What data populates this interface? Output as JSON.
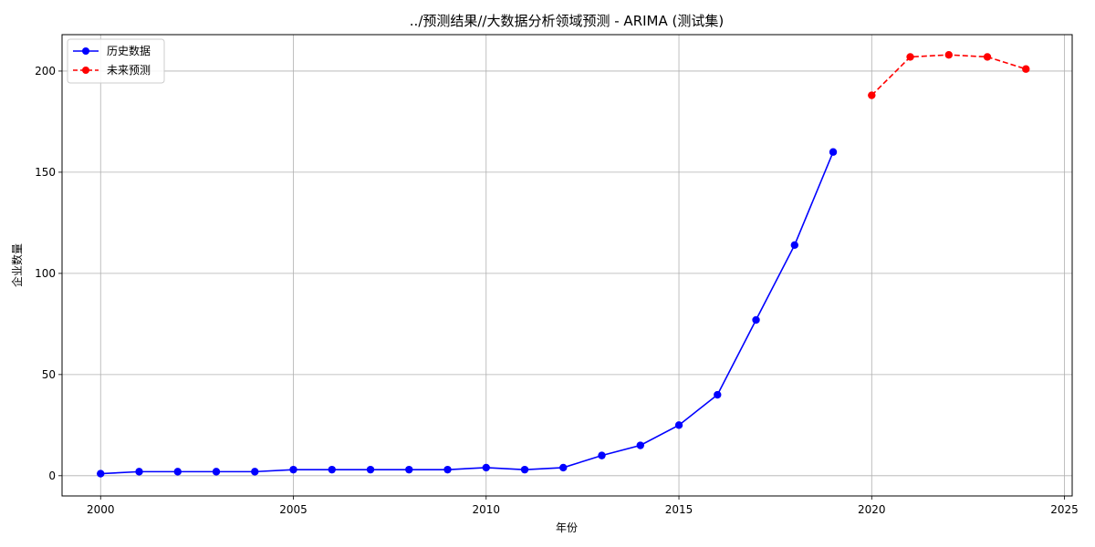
{
  "chart_data": {
    "type": "line",
    "title": "../预测结果//大数据分析领域预测 - ARIMA (测试集)",
    "xlabel": "年份",
    "ylabel": "企业数量",
    "xlim": [
      1999,
      2025.2
    ],
    "ylim": [
      -10,
      218
    ],
    "xticks": [
      2000,
      2005,
      2010,
      2015,
      2020,
      2025
    ],
    "yticks": [
      0,
      50,
      100,
      150,
      200
    ],
    "grid": true,
    "legend_position": "top-left",
    "series": [
      {
        "name": "历史数据",
        "color": "#0000ff",
        "line_style": "solid",
        "marker": "circle",
        "x": [
          2000,
          2001,
          2002,
          2003,
          2004,
          2005,
          2006,
          2007,
          2008,
          2009,
          2010,
          2011,
          2012,
          2013,
          2014,
          2015,
          2016,
          2017,
          2018,
          2019
        ],
        "y": [
          1,
          2,
          2,
          2,
          2,
          3,
          3,
          3,
          3,
          3,
          4,
          3,
          4,
          10,
          15,
          25,
          40,
          77,
          114,
          160
        ]
      },
      {
        "name": "未来预测",
        "color": "#ff0000",
        "line_style": "dashed",
        "marker": "circle",
        "x": [
          2020,
          2021,
          2022,
          2023,
          2024
        ],
        "y": [
          188,
          207,
          208,
          207,
          201
        ]
      }
    ]
  }
}
